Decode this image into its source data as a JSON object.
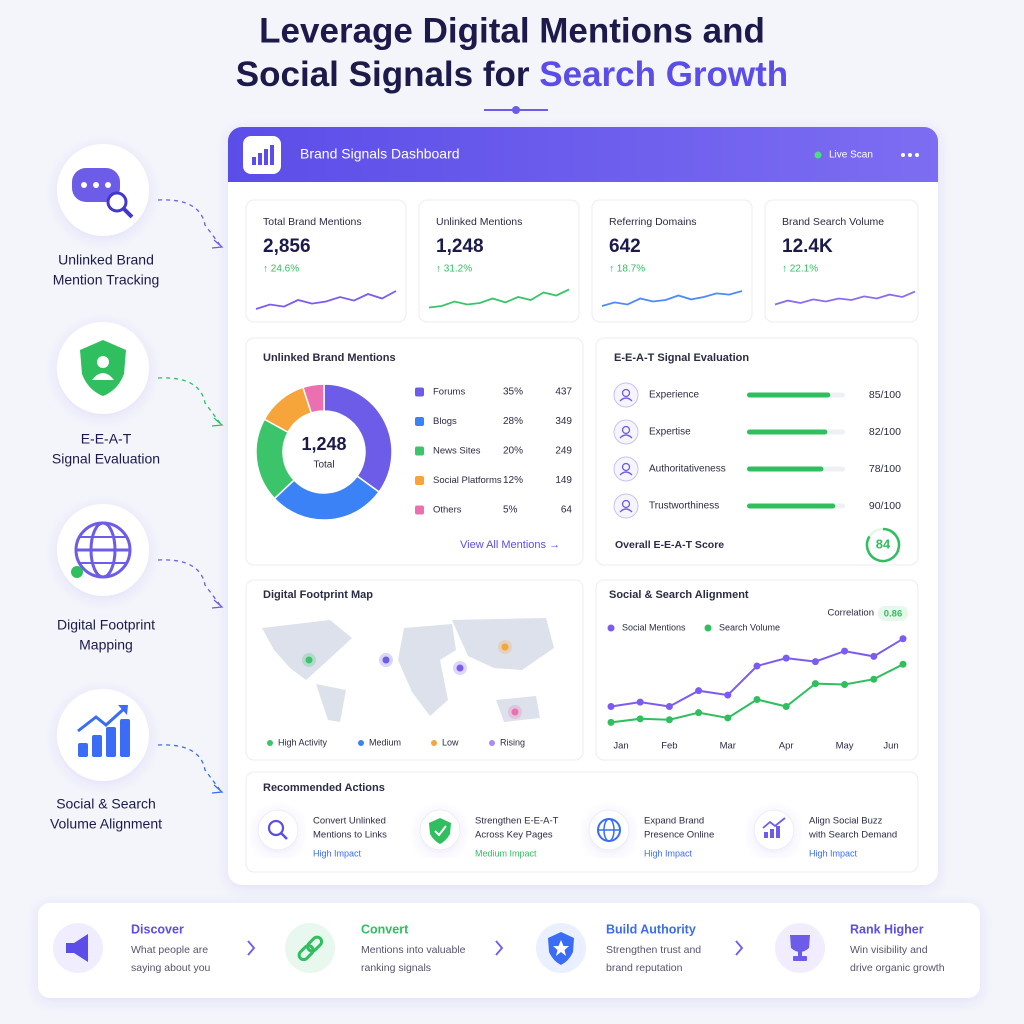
{
  "header": {
    "title_line1": "Leverage Digital Mentions and",
    "title_line2_plain": "Social Signals for",
    "title_line2_highlight": "Search Growth"
  },
  "features": [
    {
      "label_lines": [
        "Unlinked Brand",
        "Mention Tracking"
      ]
    },
    {
      "label_lines": [
        "E-E-A-T",
        "Signal Evaluation"
      ]
    },
    {
      "label_lines": [
        "Digital Footprint",
        "Mapping"
      ]
    },
    {
      "label_lines": [
        "Social & Search",
        "Volume Alignment"
      ]
    }
  ],
  "dashboard": {
    "title": "Brand Signals Dashboard",
    "status": "Live Scan",
    "kpis": [
      {
        "label": "Total Brand Mentions",
        "value": "2,856",
        "change": "↑ 24.6%",
        "color": "#7c5cf0",
        "sparkline": {
          "ylim": [
            0,
            100
          ],
          "values": [
            20,
            35,
            28,
            50,
            38,
            45,
            60,
            48,
            70,
            55,
            80
          ]
        }
      },
      {
        "label": "Unlinked Mentions",
        "value": "1,248",
        "change": "↑ 31.2%",
        "color": "#3cc46b",
        "sparkline": {
          "ylim": [
            0,
            100
          ],
          "values": [
            25,
            30,
            45,
            35,
            40,
            55,
            42,
            60,
            50,
            75,
            65,
            85
          ]
        }
      },
      {
        "label": "Referring Domains",
        "value": "642",
        "change": "↑ 18.7%",
        "color": "#4d8cf5",
        "sparkline": {
          "ylim": [
            0,
            100
          ],
          "values": [
            30,
            42,
            35,
            55,
            45,
            50,
            65,
            52,
            60,
            72,
            68,
            80
          ]
        }
      },
      {
        "label": "Brand Search Volume",
        "value": "12.4K",
        "change": "↑ 22.1%",
        "color": "#8b6cf0",
        "sparkline": {
          "ylim": [
            0,
            100
          ],
          "values": [
            35,
            48,
            40,
            52,
            45,
            55,
            50,
            62,
            55,
            68,
            60,
            78
          ]
        }
      }
    ],
    "unlinked": {
      "title": "Unlinked Brand Mentions",
      "total": "1,248",
      "total_label": "Total",
      "segments": [
        {
          "name": "Forums",
          "color": "#6c5ce7",
          "percent": 35,
          "percent_label": "35%",
          "count": 437
        },
        {
          "name": "Blogs",
          "color": "#3b82f6",
          "percent": 28,
          "percent_label": "28%",
          "count": 349
        },
        {
          "name": "News Sites",
          "color": "#3cc46b",
          "percent": 20,
          "percent_label": "20%",
          "count": 249
        },
        {
          "name": "Social Platforms",
          "color": "#f5a53a",
          "percent": 12,
          "percent_label": "12%",
          "count": 149
        },
        {
          "name": "Others",
          "color": "#ec6fb0",
          "percent": 5,
          "percent_label": "5%",
          "count": 64
        }
      ],
      "link": "View All Mentions →"
    },
    "eeat": {
      "title": "E-E-A-T Signal Evaluation",
      "score_max": 100,
      "rows": [
        {
          "name": "Experience",
          "score": 85,
          "score_label": "85/100"
        },
        {
          "name": "Expertise",
          "score": 82,
          "score_label": "82/100"
        },
        {
          "name": "Authoritativeness",
          "score": 78,
          "score_label": "78/100"
        },
        {
          "name": "Trustworthiness",
          "score": 90,
          "score_label": "90/100"
        }
      ],
      "overall_label": "Overall E-E-A-T Score",
      "overall_score": 84
    },
    "footprint": {
      "title": "Digital Footprint Map",
      "legend": [
        {
          "name": "High Activity",
          "color": "#3cc46b"
        },
        {
          "name": "Medium",
          "color": "#3b82f6"
        },
        {
          "name": "Low",
          "color": "#f5a53a"
        },
        {
          "name": "Rising",
          "color": "#a78bfa"
        }
      ]
    },
    "alignment": {
      "type": "line",
      "title": "Social & Search Alignment",
      "correlation_label": "Correlation",
      "correlation_value": "0.86",
      "categories": [
        "Jan",
        null,
        "Feb",
        null,
        "Mar",
        null,
        "Apr",
        null,
        "May",
        null,
        "Jun"
      ],
      "ylim": [
        0,
        100
      ],
      "series": [
        {
          "name": "Social Mentions",
          "color": "#7c5cf0",
          "values": [
            21,
            26,
            21,
            39,
            34,
            67,
            76,
            72,
            84,
            78,
            98
          ]
        },
        {
          "name": "Search Volume",
          "color": "#2fbf5f",
          "values": [
            3,
            7,
            6,
            14,
            8,
            29,
            21,
            47,
            46,
            52,
            69
          ]
        }
      ]
    },
    "actions": {
      "title": "Recommended Actions",
      "items": [
        {
          "lines": [
            "Convert Unlinked",
            "Mentions to Links"
          ],
          "impact": "High Impact"
        },
        {
          "lines": [
            "Strengthen E-E-A-T",
            "Across Key Pages"
          ],
          "impact": "Medium Impact"
        },
        {
          "lines": [
            "Expand Brand",
            "Presence Online"
          ],
          "impact": "High Impact"
        },
        {
          "lines": [
            "Align Social Buzz",
            "with Search Demand"
          ],
          "impact": "High Impact"
        }
      ]
    }
  },
  "steps": [
    {
      "title": "Discover",
      "lines": [
        "What people are",
        "saying about you"
      ]
    },
    {
      "title": "Convert",
      "lines": [
        "Mentions into valuable",
        "ranking signals"
      ]
    },
    {
      "title": "Build Authority",
      "lines": [
        "Strengthen trust and",
        "brand reputation"
      ]
    },
    {
      "title": "Rank Higher",
      "lines": [
        "Win visibility and",
        "drive organic growth"
      ]
    }
  ]
}
